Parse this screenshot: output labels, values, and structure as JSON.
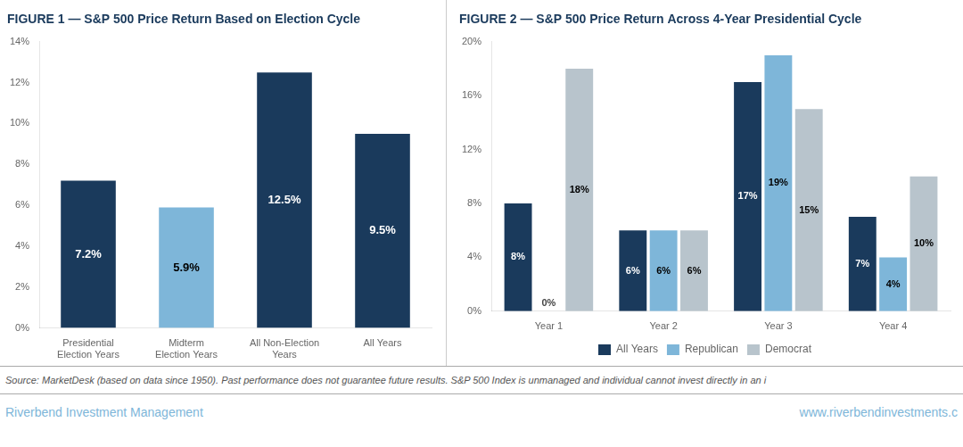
{
  "chart_data": [
    {
      "type": "bar",
      "title": "FIGURE 1 — S&P 500 Price Return Based on Election Cycle",
      "categories": [
        "Presidential\nElection Years",
        "Midterm\nElection Years",
        "All Non-Election\nYears",
        "All Years"
      ],
      "values": [
        7.2,
        5.9,
        12.5,
        9.5
      ],
      "value_labels": [
        "7.2%",
        "5.9%",
        "12.5%",
        "9.5%"
      ],
      "colors": [
        "#1a3a5c",
        "#7eb6d9",
        "#1a3a5c",
        "#1a3a5c"
      ],
      "ylim": [
        0,
        14
      ],
      "yticks": [
        {
          "value": 0,
          "label": "0%"
        },
        {
          "value": 2,
          "label": "2%"
        },
        {
          "value": 4,
          "label": "4%"
        },
        {
          "value": 6,
          "label": "6%"
        },
        {
          "value": 8,
          "label": "8%"
        },
        {
          "value": 10,
          "label": "10%"
        },
        {
          "value": 12,
          "label": "12%"
        },
        {
          "value": 14,
          "label": "14%"
        }
      ],
      "grid": false,
      "data_labels": true
    },
    {
      "type": "bar",
      "title": "FIGURE 2 — S&P 500 Price Return Across 4-Year Presidential Cycle",
      "categories": [
        "Year 1",
        "Year 2",
        "Year 3",
        "Year 4"
      ],
      "series": [
        {
          "name": "All Years",
          "color": "#1a3a5c",
          "values": [
            8,
            6,
            17,
            7
          ],
          "value_labels": [
            "8%",
            "6%",
            "17%",
            "7%"
          ]
        },
        {
          "name": "Republican",
          "color": "#7eb6d9",
          "values": [
            0,
            6,
            19,
            4
          ],
          "value_labels": [
            "0%",
            "6%",
            "19%",
            "4%"
          ]
        },
        {
          "name": "Democrat",
          "color": "#b8c4cc",
          "values": [
            18,
            6,
            15,
            10
          ],
          "value_labels": [
            "18%",
            "6%",
            "15%",
            "10%"
          ]
        }
      ],
      "ylim": [
        0,
        20
      ],
      "yticks": [
        {
          "value": 0,
          "label": "0%"
        },
        {
          "value": 4,
          "label": "4%"
        },
        {
          "value": 8,
          "label": "8%"
        },
        {
          "value": 12,
          "label": "12%"
        },
        {
          "value": 16,
          "label": "16%"
        },
        {
          "value": 20,
          "label": "20%"
        }
      ],
      "grid": false,
      "data_labels": true,
      "legend": "bottom"
    }
  ],
  "annotations": [
    "Source: MarketDesk (based on data since 1950). Past performance does not guarantee future results. S&P 500 Index is unmanaged and individual cannot invest directly in an i",
    "Riverbend Investment Management",
    "www.riverbendinvestments.c"
  ]
}
